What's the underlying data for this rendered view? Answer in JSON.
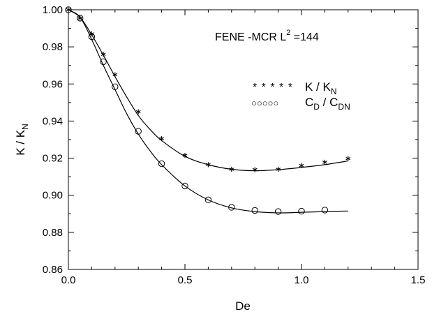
{
  "chart_data": {
    "type": "scatter",
    "xlabel": "De",
    "ylabel_main": "K / K",
    "ylabel_sub": "N",
    "xlim": [
      0,
      1.5
    ],
    "ylim": [
      0.86,
      1.0
    ],
    "x_ticks": [
      0.0,
      0.5,
      1.0,
      1.5
    ],
    "x_tick_labels": [
      "0.0",
      "0.5",
      "1.0",
      "1.5"
    ],
    "y_ticks": [
      0.86,
      0.88,
      0.9,
      0.92,
      0.94,
      0.96,
      0.98,
      1.0
    ],
    "y_tick_labels": [
      "0.86",
      "0.88",
      "0.90",
      "0.92",
      "0.94",
      "0.96",
      "0.98",
      "1.00"
    ],
    "grid": false,
    "annotation": {
      "prefix": "FENE -MCR L",
      "superscript": "2",
      "suffix": " =144"
    },
    "series": [
      {
        "legend_markers": "* * * * *",
        "legend_main_1": "K / K",
        "legend_sub_1": "N",
        "marker": "star",
        "x": [
          0.0,
          0.05,
          0.1,
          0.15,
          0.2,
          0.3,
          0.4,
          0.5,
          0.6,
          0.7,
          0.8,
          0.9,
          1.0,
          1.1,
          1.2
        ],
        "y": [
          1.0,
          0.9955,
          0.987,
          0.976,
          0.965,
          0.945,
          0.9305,
          0.9215,
          0.9165,
          0.914,
          0.9138,
          0.914,
          0.916,
          0.9178,
          0.9198
        ],
        "curve_x": [
          0.0,
          0.05,
          0.1,
          0.15,
          0.2,
          0.25,
          0.3,
          0.35,
          0.4,
          0.5,
          0.6,
          0.7,
          0.8,
          0.9,
          1.0,
          1.1,
          1.2
        ],
        "curve_y": [
          1.0,
          0.996,
          0.9865,
          0.9755,
          0.964,
          0.953,
          0.943,
          0.9355,
          0.9295,
          0.921,
          0.9165,
          0.914,
          0.9132,
          0.9138,
          0.915,
          0.9165,
          0.9185
        ]
      },
      {
        "legend_markers": "○○○○○",
        "legend_main_1": "C",
        "legend_sub_1": "D",
        "legend_main_2": " / C",
        "legend_sub_2": "DN",
        "marker": "circle",
        "x": [
          0.0,
          0.05,
          0.1,
          0.15,
          0.2,
          0.3,
          0.4,
          0.5,
          0.6,
          0.7,
          0.8,
          0.9,
          1.0,
          1.1
        ],
        "y": [
          1.0,
          0.9955,
          0.9855,
          0.972,
          0.9585,
          0.9345,
          0.917,
          0.905,
          0.8975,
          0.8935,
          0.8918,
          0.8912,
          0.8914,
          0.892
        ],
        "curve_x": [
          0.0,
          0.05,
          0.1,
          0.15,
          0.2,
          0.25,
          0.3,
          0.35,
          0.4,
          0.5,
          0.6,
          0.7,
          0.8,
          0.9,
          1.0,
          1.1,
          1.2
        ],
        "curve_y": [
          1.0,
          0.996,
          0.984,
          0.97,
          0.957,
          0.944,
          0.933,
          0.924,
          0.9165,
          0.905,
          0.8975,
          0.8932,
          0.8912,
          0.8905,
          0.8908,
          0.8912,
          0.8915
        ]
      }
    ]
  }
}
